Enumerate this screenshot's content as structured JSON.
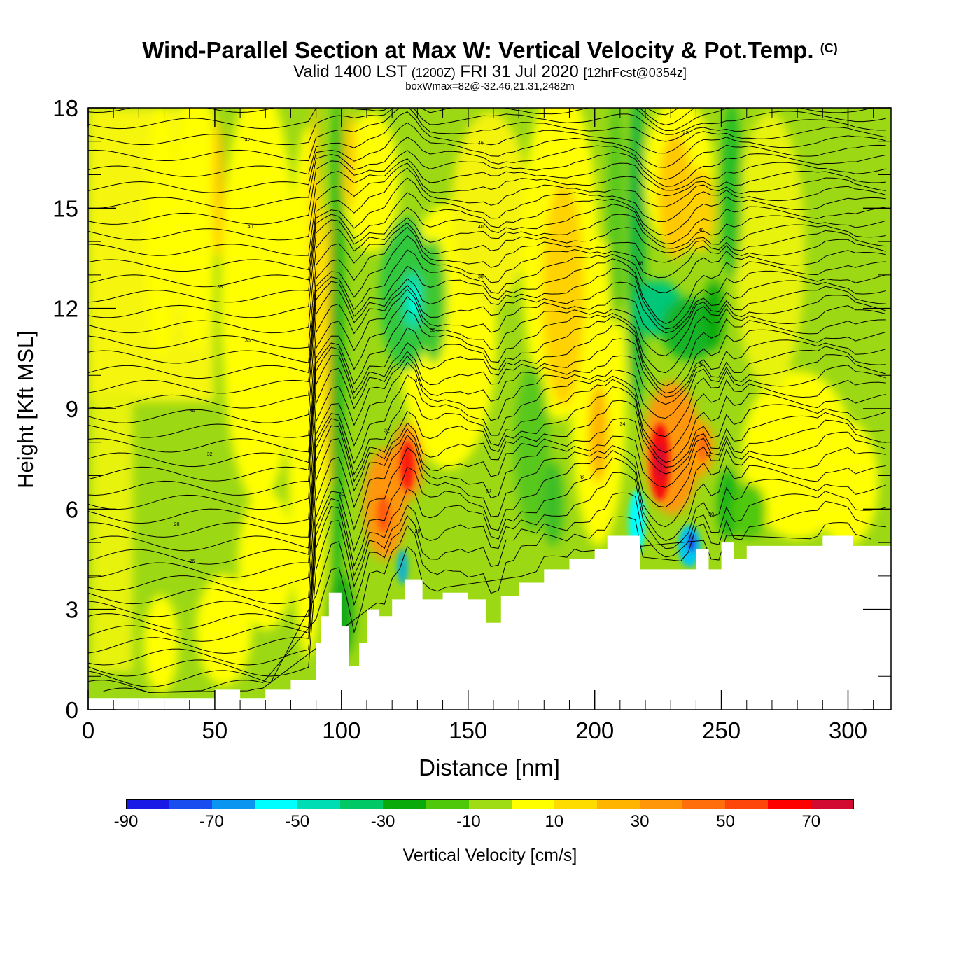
{
  "title": {
    "main": "Wind-Parallel Section at Max W: Vertical Velocity & Pot.Temp.",
    "copyright": "(C)",
    "valid_prefix": "Valid 1400 LST",
    "valid_zulu": "(1200Z)",
    "valid_date": "FRI 31 Jul 2020",
    "valid_fcst": "[12hrFcst@0354z]",
    "subtitle": "boxWmax=82@-32.46,21.31,2482m"
  },
  "chart_data": {
    "type": "heatmap",
    "xlabel": "Distance [nm]",
    "ylabel": "Height [Kft MSL]",
    "xlim": [
      0,
      317
    ],
    "ylim": [
      0,
      18
    ],
    "xticks": [
      0,
      50,
      100,
      150,
      200,
      250,
      300
    ],
    "yticks": [
      0,
      3,
      6,
      9,
      12,
      15,
      18
    ],
    "field": "Vertical Velocity [cm/s]",
    "contours": "Potential temperature (C)",
    "terrain_top_kft": [
      [
        0,
        0.35
      ],
      [
        45,
        0.35
      ],
      [
        50,
        0.6
      ],
      [
        55,
        0.6
      ],
      [
        60,
        0.35
      ],
      [
        65,
        0.35
      ],
      [
        70,
        0.6
      ],
      [
        80,
        0.9
      ],
      [
        90,
        2.0
      ],
      [
        92,
        2.8
      ],
      [
        95,
        3.5
      ],
      [
        100,
        2.5
      ],
      [
        103,
        1.3
      ],
      [
        107,
        2.0
      ],
      [
        110,
        3.0
      ],
      [
        115,
        2.8
      ],
      [
        120,
        3.3
      ],
      [
        125,
        3.9
      ],
      [
        132,
        3.3
      ],
      [
        140,
        3.5
      ],
      [
        150,
        3.3
      ],
      [
        157,
        2.6
      ],
      [
        163,
        3.4
      ],
      [
        170,
        3.8
      ],
      [
        180,
        4.2
      ],
      [
        190,
        4.5
      ],
      [
        200,
        4.8
      ],
      [
        205,
        5.2
      ],
      [
        215,
        5.2
      ],
      [
        218,
        4.2
      ],
      [
        235,
        4.2
      ],
      [
        240,
        4.8
      ],
      [
        245,
        4.2
      ],
      [
        250,
        5.0
      ],
      [
        255,
        4.5
      ],
      [
        260,
        4.9
      ],
      [
        285,
        4.9
      ],
      [
        290,
        5.2
      ],
      [
        300,
        5.2
      ],
      [
        302,
        4.9
      ],
      [
        317,
        4.9
      ]
    ],
    "contour_labels": [
      {
        "x": 63,
        "y": 17.0,
        "text": "42"
      },
      {
        "x": 155,
        "y": 16.9,
        "text": "46"
      },
      {
        "x": 236,
        "y": 17.2,
        "text": "45"
      },
      {
        "x": 64,
        "y": 14.4,
        "text": "40"
      },
      {
        "x": 155,
        "y": 14.4,
        "text": "40"
      },
      {
        "x": 242,
        "y": 14.3,
        "text": "40"
      },
      {
        "x": 52,
        "y": 12.6,
        "text": "38"
      },
      {
        "x": 155,
        "y": 12.9,
        "text": "38"
      },
      {
        "x": 218,
        "y": 13.3,
        "text": "38"
      },
      {
        "x": 63,
        "y": 11.0,
        "text": "36"
      },
      {
        "x": 136,
        "y": 11.3,
        "text": "36"
      },
      {
        "x": 233,
        "y": 11.4,
        "text": "37"
      },
      {
        "x": 130,
        "y": 9.8,
        "text": "34"
      },
      {
        "x": 242,
        "y": 10.3,
        "text": "34"
      },
      {
        "x": 41,
        "y": 8.9,
        "text": "34"
      },
      {
        "x": 118,
        "y": 8.3,
        "text": "32"
      },
      {
        "x": 211,
        "y": 8.5,
        "text": "34"
      },
      {
        "x": 48,
        "y": 7.6,
        "text": "32"
      },
      {
        "x": 195,
        "y": 6.9,
        "text": "32"
      },
      {
        "x": 245,
        "y": 7.6,
        "text": "32"
      },
      {
        "x": 100,
        "y": 6.4,
        "text": "30"
      },
      {
        "x": 158,
        "y": 6.5,
        "text": "30"
      },
      {
        "x": 246,
        "y": 5.8,
        "text": "30"
      },
      {
        "x": 35,
        "y": 5.5,
        "text": "28"
      },
      {
        "x": 130,
        "y": 5.3,
        "text": "28"
      },
      {
        "x": 41,
        "y": 4.4,
        "text": "26"
      }
    ],
    "colorbar": {
      "ticks": [
        "-90",
        "-70",
        "-50",
        "-30",
        "-10",
        "10",
        "30",
        "50",
        "70"
      ],
      "label": "Vertical Velocity [cm/s]",
      "colors": [
        "#1a1ae6",
        "#1a4df0",
        "#0a96f0",
        "#00ffff",
        "#00dcb4",
        "#00c864",
        "#0aaa0a",
        "#50c80a",
        "#a0dc14",
        "#ffff00",
        "#ffdc00",
        "#ffb400",
        "#ff960a",
        "#ff6e0a",
        "#ff460a",
        "#ff0000",
        "#d20a32"
      ]
    }
  }
}
